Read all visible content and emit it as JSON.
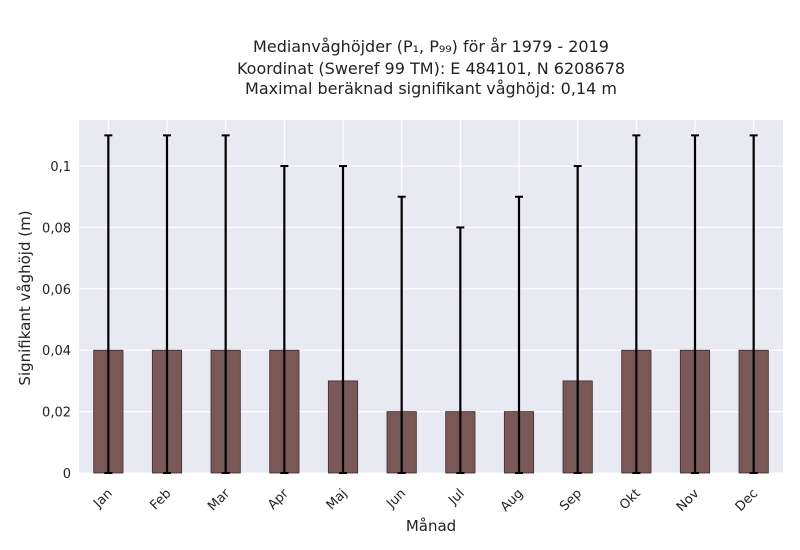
{
  "chart_data": {
    "type": "bar",
    "title_lines": [
      "Medianvåghöjder (P₁, P₉₉) för år 1979 - 2019",
      "Koordinat (Sweref 99 TM): E 484101, N 6208678",
      "Maximal beräknad signifikant våghöjd: 0,14 m"
    ],
    "xlabel": "Månad",
    "ylabel": "Signifikant våghöjd (m)",
    "categories": [
      "Jan",
      "Feb",
      "Mar",
      "Apr",
      "Maj",
      "Jun",
      "Jul",
      "Aug",
      "Sep",
      "Okt",
      "Nov",
      "Dec"
    ],
    "values": [
      0.04,
      0.04,
      0.04,
      0.04,
      0.03,
      0.02,
      0.02,
      0.02,
      0.03,
      0.04,
      0.04,
      0.04
    ],
    "error_low": [
      0,
      0,
      0,
      0,
      0,
      0,
      0,
      0,
      0,
      0,
      0,
      0
    ],
    "error_high": [
      0.11,
      0.11,
      0.11,
      0.1,
      0.1,
      0.09,
      0.08,
      0.09,
      0.1,
      0.11,
      0.11,
      0.11
    ],
    "ylim": [
      0,
      0.115
    ],
    "yticks": [
      0,
      0.02,
      0.04,
      0.06,
      0.08,
      0.1
    ],
    "ytick_labels": [
      "0",
      "0,02",
      "0,04",
      "0,06",
      "0,08",
      "0,1"
    ],
    "grid": true,
    "colors": {
      "bar": "#7a5858",
      "bar_edge": "#3a2a2a",
      "error_bar": "#000000",
      "plot_background": "#e9e9f1",
      "grid": "#ffffff"
    }
  }
}
